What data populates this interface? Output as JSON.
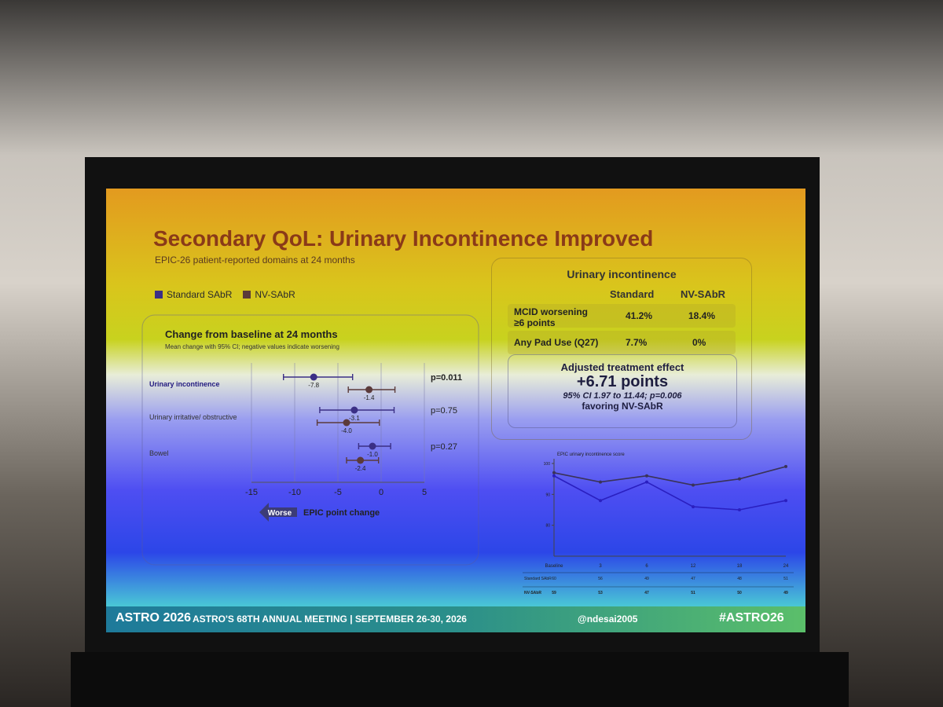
{
  "slide": {
    "title": "Secondary QoL: Urinary Incontinence Improved",
    "subtitle": "EPIC-26 patient-reported domains at 24 months",
    "summary": {
      "heading": "Urinary incontinence",
      "columns": [
        "Standard",
        "NV-SAbR"
      ],
      "rows": [
        {
          "label": "MCID worsening ≥6 points",
          "cells": [
            "41.2%",
            "18.4%"
          ]
        },
        {
          "label": "Any Pad Use (Q27)",
          "cells": [
            "7.7%",
            "0%"
          ]
        }
      ],
      "effect_heading": "Adjusted treatment effect",
      "effect_value": "+6.71 points",
      "effect_ci": "95% CI 1.97 to 11.44; p=0.006",
      "effect_note": "favoring NV-SAbR"
    },
    "footer": {
      "logo": "ASTRO 2026",
      "meeting": "ASTRO'S 68TH ANNUAL MEETING  |  SEPTEMBER 26-30, 2026",
      "handle": "@ndesai2005",
      "hashtag": "#ASTRO26"
    }
  },
  "chart_data": [
    {
      "type": "forest",
      "title": "Change from baseline at 24 months",
      "subtitle": "Mean change with 95% CI; negative values indicate worsening",
      "categories": [
        "Urinary incontinence",
        "Urinary irritative/ obstructive",
        "Bowel"
      ],
      "series": [
        {
          "name": "Standard SAbR",
          "color": "#3b2f86",
          "values": [
            -7.8,
            -3.1,
            -1.0
          ],
          "value_labels": [
            "-7.8",
            "-3.1",
            "-1.0"
          ],
          "lower": [
            -11.3,
            -7.1,
            -2.6
          ],
          "upper": [
            -3.3,
            1.5,
            1.1
          ]
        },
        {
          "name": "NV-SAbR",
          "color": "#5b3a3a",
          "values": [
            -1.4,
            -4.0,
            -2.4
          ],
          "value_labels": [
            "-1.4",
            "-4.0",
            "-2.4"
          ],
          "lower": [
            -3.8,
            -7.4,
            -4.0
          ],
          "upper": [
            1.6,
            -0.2,
            -0.3
          ]
        }
      ],
      "p_values": [
        "p=0.011",
        "p=0.75",
        "p=0.27"
      ],
      "xlabel": "EPIC point change",
      "annotation": "Worse",
      "xlim": [
        -15,
        5
      ],
      "xticks": [
        -15,
        -10,
        -5,
        0,
        5
      ],
      "grid": true
    },
    {
      "type": "line",
      "title": "EPIC urinary incontinence score",
      "categories": [
        "Baseline",
        "3",
        "6",
        "12",
        "18",
        "24"
      ],
      "series": [
        {
          "name": "NV-SAbR",
          "color": "#3a3358",
          "values": [
            97,
            94,
            96,
            93,
            95,
            99
          ]
        },
        {
          "name": "Standard SAbR",
          "color": "#2a1fc0",
          "values": [
            96,
            88,
            94,
            86,
            85,
            88
          ]
        }
      ],
      "ylim": [
        70,
        100
      ],
      "yticks": [
        80,
        90,
        100
      ],
      "table": [
        {
          "label": "Standard SAbR",
          "values": [
            60,
            56,
            49,
            47,
            48,
            51
          ]
        },
        {
          "label": "NV-SAbR",
          "values": [
            59,
            53,
            47,
            51,
            50,
            49
          ]
        }
      ]
    }
  ]
}
